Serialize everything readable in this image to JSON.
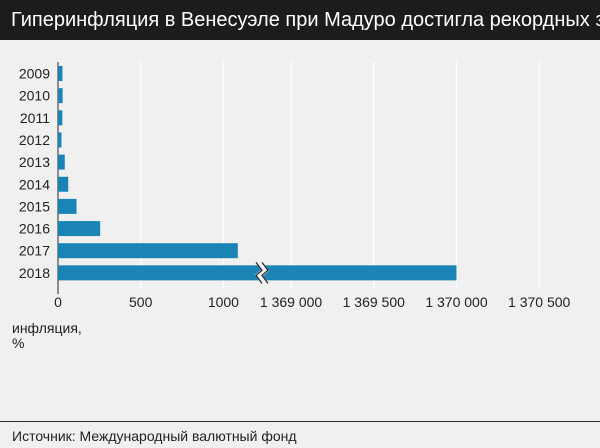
{
  "title": "Гиперинфляция в Венесуэле при Мадуро достигла рекордных значений",
  "unit_label": [
    "инфляция,",
    "%"
  ],
  "source": "Источник: Международный валютный фонд",
  "colors": {
    "bar": "#1a85b4",
    "grid": "#ffffff",
    "background": "#f0f0f0",
    "title_bg": "#1c1c1c"
  },
  "chart_data": {
    "type": "bar",
    "orientation": "horizontal",
    "categories": [
      "2009",
      "2010",
      "2011",
      "2012",
      "2013",
      "2014",
      "2015",
      "2016",
      "2017",
      "2018"
    ],
    "values": [
      27,
      28,
      26,
      21,
      41,
      62,
      112,
      255,
      1087,
      1370000
    ],
    "x_axis_broken": true,
    "x_ticks": [
      "0",
      "500",
      "1000",
      "1 369 000",
      "1 369 500",
      "1 370 000",
      "1 370 500"
    ],
    "xlim_segments": [
      [
        0,
        1200
      ],
      [
        1368800,
        1370500
      ]
    ],
    "grid": true
  }
}
